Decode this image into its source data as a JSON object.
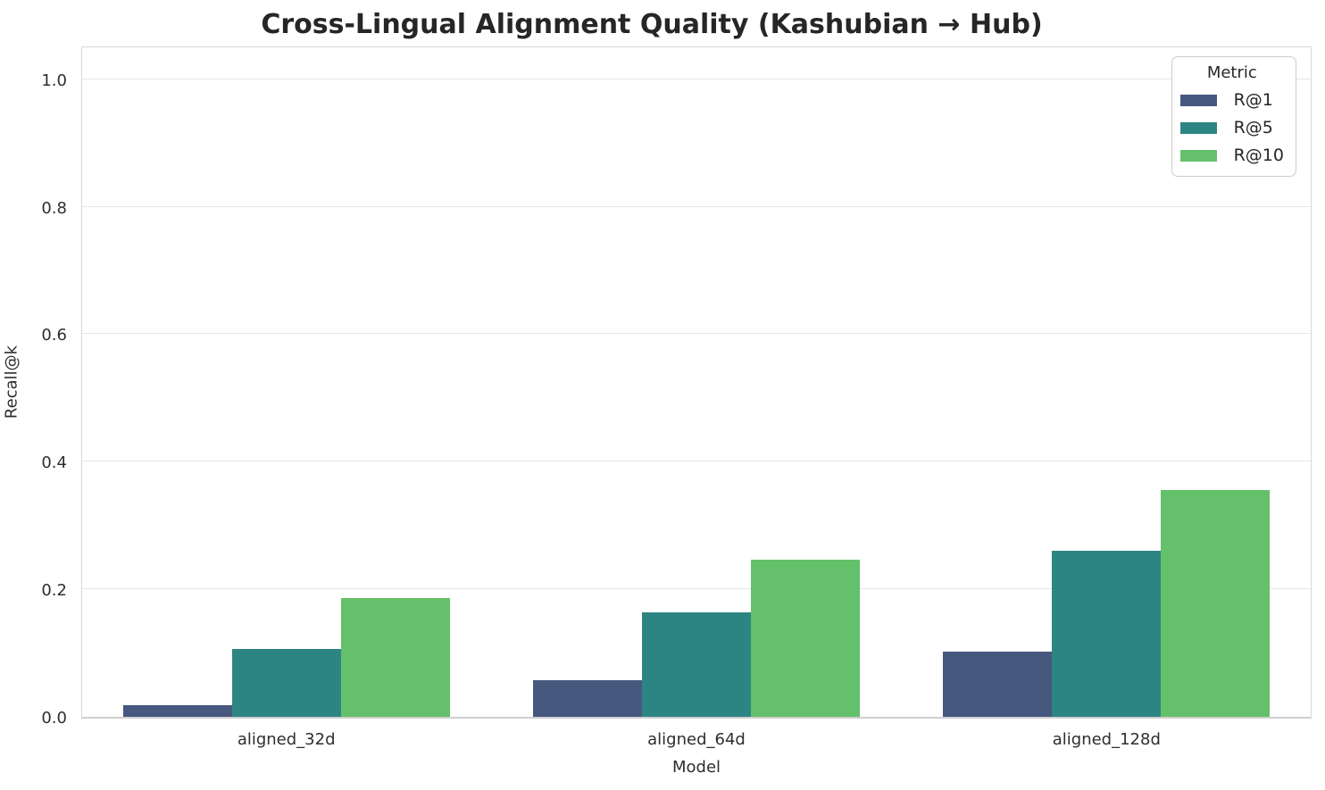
{
  "chart_data": {
    "type": "bar",
    "title": "Cross-Lingual Alignment Quality (Kashubian → Hub)",
    "xlabel": "Model",
    "ylabel": "Recall@k",
    "categories": [
      "aligned_32d",
      "aligned_64d",
      "aligned_128d"
    ],
    "series": [
      {
        "name": "R@1",
        "color": "#46587e",
        "values": [
          0.018,
          0.058,
          0.102
        ]
      },
      {
        "name": "R@5",
        "color": "#2d8583",
        "values": [
          0.106,
          0.164,
          0.26
        ]
      },
      {
        "name": "R@10",
        "color": "#64c06a",
        "values": [
          0.186,
          0.246,
          0.355
        ]
      }
    ],
    "ylim": [
      0,
      1.05
    ],
    "yticks": [
      0.0,
      0.2,
      0.4,
      0.6,
      0.8,
      1.0
    ],
    "grid": true,
    "legend": {
      "title": "Metric",
      "position": "upper right"
    },
    "colors": {
      "background": "#ffffff",
      "gridline": "#e6e6e6",
      "spine": "#d9d9d9",
      "text": "#262626"
    }
  }
}
